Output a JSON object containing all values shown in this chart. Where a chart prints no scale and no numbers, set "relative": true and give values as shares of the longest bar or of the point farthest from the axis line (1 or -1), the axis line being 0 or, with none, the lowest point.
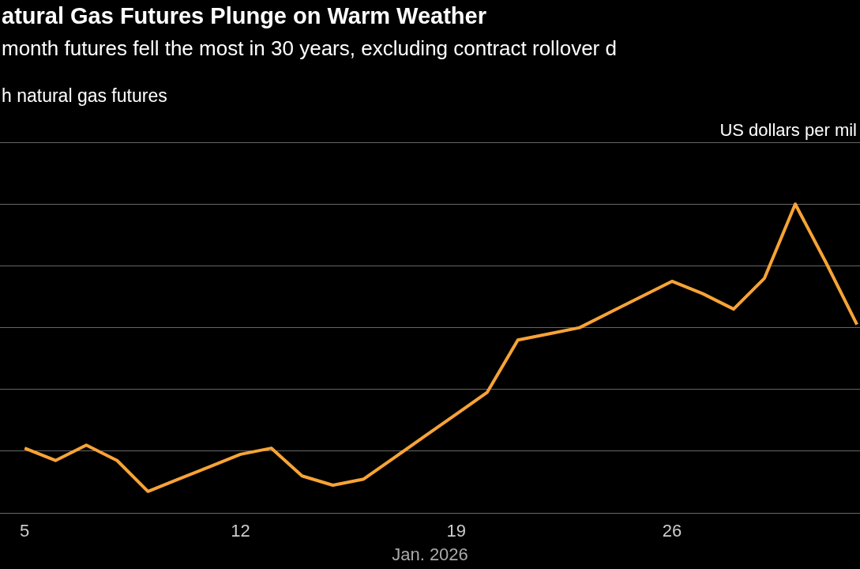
{
  "chart_data": {
    "type": "line",
    "title": "atural Gas Futures Plunge on Warm Weather",
    "subtitle": "month futures fell the most in 30 years, excluding contract rollover d",
    "annotations": [
      "h natural gas futures"
    ],
    "ylabel": "US dollars per mil",
    "xlabel": "Jan. 2026",
    "relative": true,
    "x": [
      5,
      6,
      7,
      8,
      9,
      10,
      11,
      12,
      13,
      14,
      15,
      16,
      17,
      18,
      19,
      20,
      21,
      22,
      23,
      24,
      25,
      26,
      27,
      28,
      29,
      30,
      31,
      32
    ],
    "series": [
      {
        "color": "#f7a336",
        "values": [
          0.21,
          0.17,
          0.22,
          0.17,
          0.07,
          0.11,
          0.15,
          0.19,
          0.21,
          0.12,
          0.09,
          0.11,
          0.18,
          0.25,
          0.32,
          0.39,
          0.56,
          0.58,
          0.6,
          0.65,
          0.7,
          0.75,
          0.71,
          0.66,
          0.76,
          1,
          0.81,
          0.61
        ]
      }
    ],
    "xlim": [
      4.2,
      32.1
    ],
    "xticks": [
      5,
      12,
      19,
      26
    ],
    "grid": "y",
    "legend": false,
    "marker": "none",
    "line_style": "solid"
  }
}
